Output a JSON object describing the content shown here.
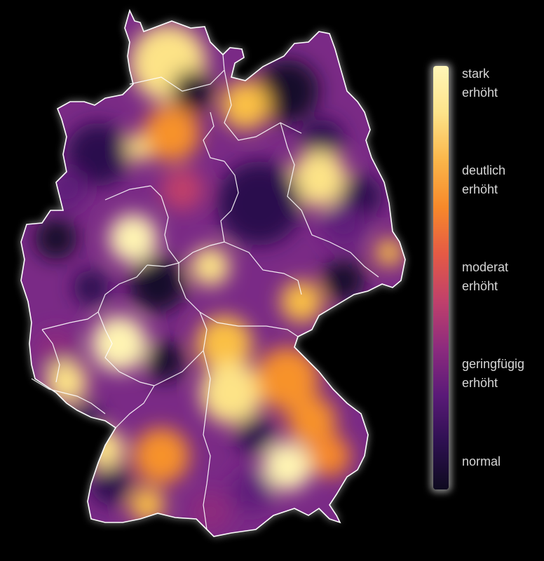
{
  "legend": {
    "levels": [
      {
        "label": "stark\nerhöht",
        "color": "#fcf4a8"
      },
      {
        "label": "deutlich\nerhöht",
        "color": "#f7892a"
      },
      {
        "label": "moderat\nerhöht",
        "color": "#c8396a"
      },
      {
        "label": "geringfügig\nerhöht",
        "color": "#6b1a7a"
      },
      {
        "label": "normal",
        "color": "#140d2a"
      }
    ]
  },
  "map": {
    "color_scale": [
      "#0e0a1f",
      "#2a0f4d",
      "#5e1a7a",
      "#8d2b7e",
      "#c0406b",
      "#e7623f",
      "#f7922b",
      "#fbc045",
      "#fde387",
      "#fff4b3"
    ]
  }
}
